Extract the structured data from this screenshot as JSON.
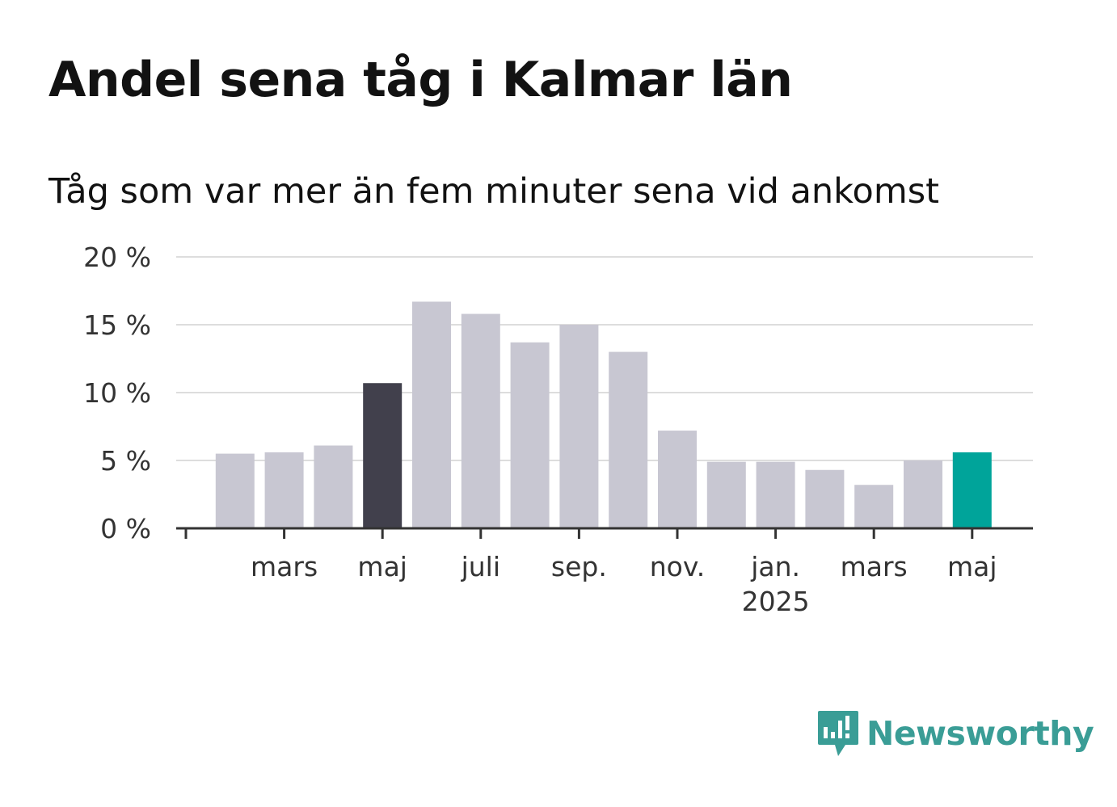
{
  "title": "Andel sena tåg i Kalmar län",
  "subtitle": "Tåg som var mer än fem minuter sena vid ankomst",
  "brand": {
    "name": "Newsworthy",
    "color": "#3a9d96",
    "icon": "newsworthy-logo-icon"
  },
  "colors": {
    "default": "#c8c7d2",
    "highlight_dark": "#41404c",
    "highlight_latest": "#00a49a"
  },
  "chart_data": {
    "type": "bar",
    "title": "Andel sena tåg i Kalmar län",
    "subtitle": "Tåg som var mer än fem minuter sena vid ankomst",
    "xlabel": "",
    "ylabel": "",
    "ylim": [
      0,
      20
    ],
    "y_ticks": [
      0,
      5,
      10,
      15,
      20
    ],
    "y_tick_labels": [
      "0 %",
      "5 %",
      "10 %",
      "15 %",
      "20 %"
    ],
    "grid": true,
    "x_tick_labels": [
      {
        "label": "mars",
        "sublabel": "",
        "index": 2
      },
      {
        "label": "maj",
        "sublabel": "",
        "index": 4
      },
      {
        "label": "juli",
        "sublabel": "",
        "index": 6
      },
      {
        "label": "sep.",
        "sublabel": "",
        "index": 8
      },
      {
        "label": "nov.",
        "sublabel": "",
        "index": 10
      },
      {
        "label": "jan.",
        "sublabel": "2025",
        "index": 12
      },
      {
        "label": "mars",
        "sublabel": "",
        "index": 14
      },
      {
        "label": "maj",
        "sublabel": "",
        "index": 16
      }
    ],
    "categories": [
      "2024-01",
      "2024-02",
      "2024-03",
      "2024-04",
      "2024-05",
      "2024-06",
      "2024-07",
      "2024-08",
      "2024-09",
      "2024-10",
      "2024-11",
      "2024-12",
      "2025-01",
      "2025-02",
      "2025-03",
      "2025-04",
      "2025-05"
    ],
    "values": [
      null,
      5.5,
      5.6,
      6.1,
      10.7,
      16.7,
      15.8,
      13.7,
      15.0,
      13.0,
      7.2,
      4.9,
      4.9,
      4.3,
      3.2,
      5.0,
      5.6
    ],
    "highlight": {
      "dark": [
        4
      ],
      "latest": [
        16
      ]
    }
  }
}
